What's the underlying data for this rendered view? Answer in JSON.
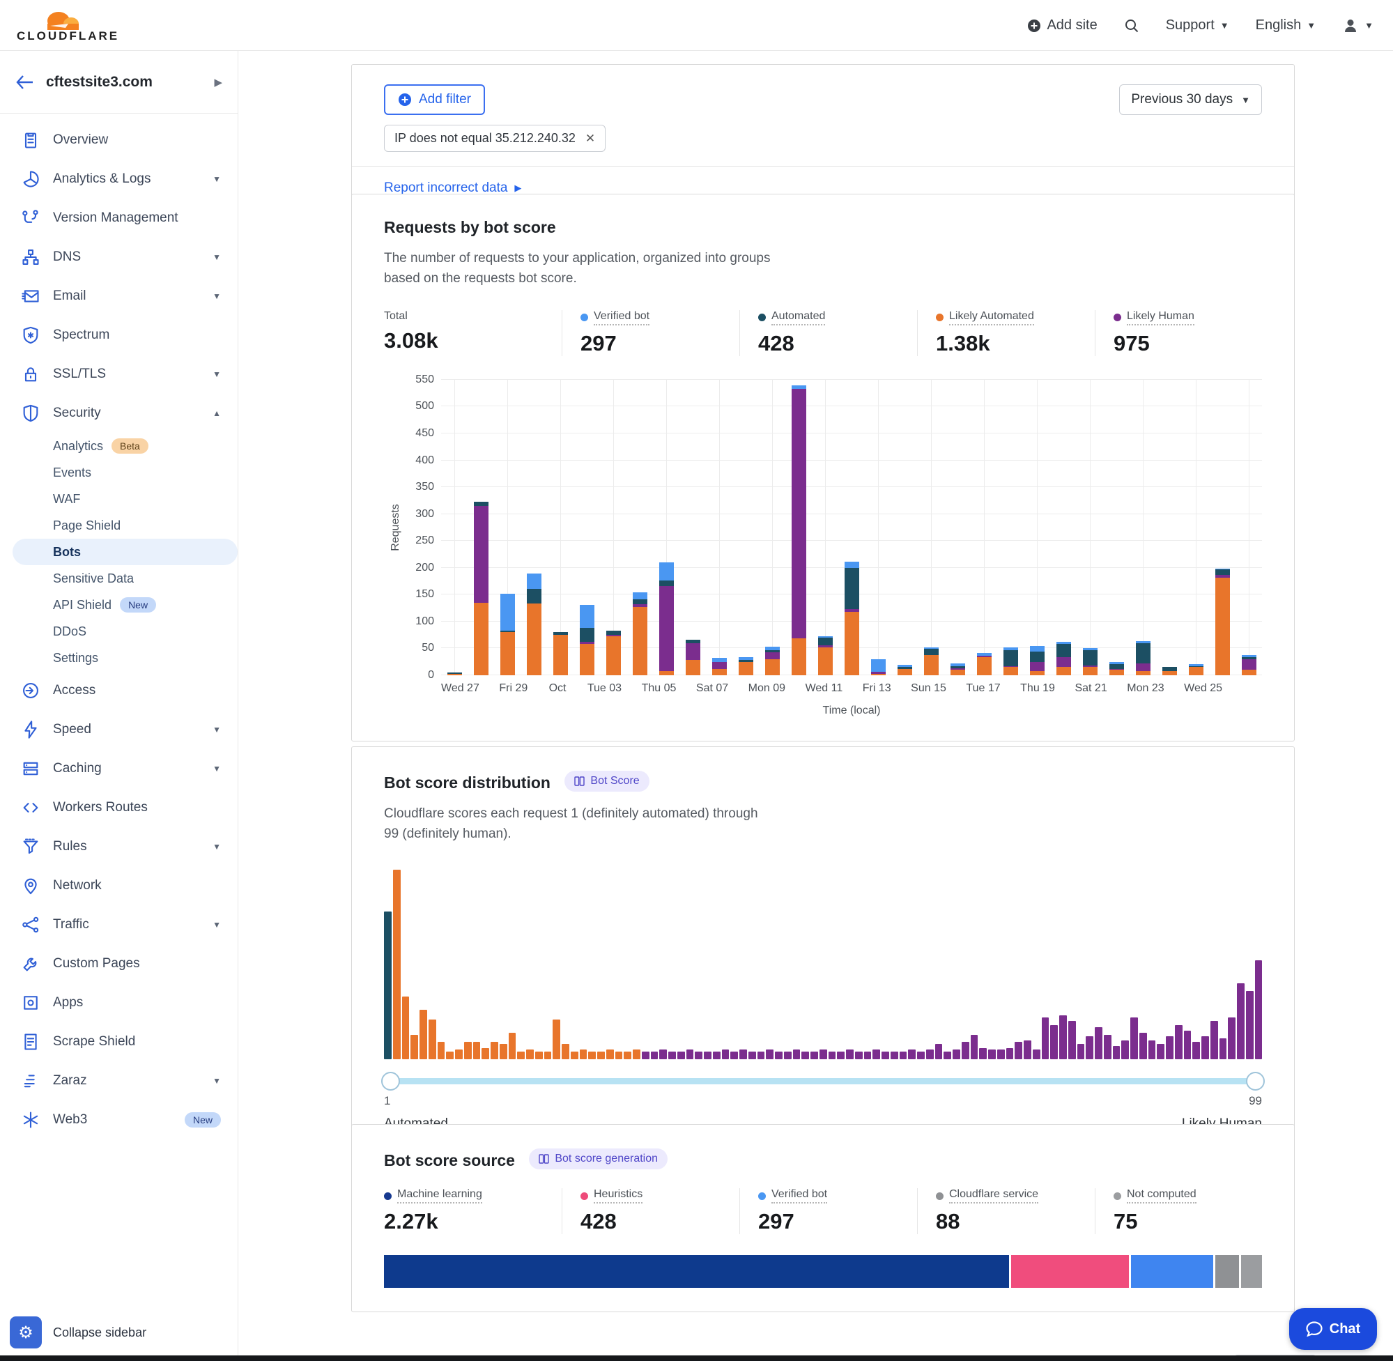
{
  "header": {
    "brand": "CLOUDFLARE",
    "add_site": "Add site",
    "support": "Support",
    "language": "English"
  },
  "sidebar": {
    "site": "cftestsite3.com",
    "collapse": "Collapse sidebar",
    "items": [
      {
        "label": "Overview",
        "icon": "clipboard"
      },
      {
        "label": "Analytics & Logs",
        "icon": "pie",
        "caret": "down"
      },
      {
        "label": "Version Management",
        "icon": "branch"
      },
      {
        "label": "DNS",
        "icon": "sitemap",
        "caret": "down"
      },
      {
        "label": "Email",
        "icon": "envelope",
        "caret": "down"
      },
      {
        "label": "Spectrum",
        "icon": "shield-gear"
      },
      {
        "label": "SSL/TLS",
        "icon": "lock",
        "caret": "down"
      },
      {
        "label": "Security",
        "icon": "shield",
        "caret": "up",
        "children": [
          {
            "label": "Analytics",
            "badge": {
              "text": "Beta",
              "style": "beta"
            }
          },
          {
            "label": "Events"
          },
          {
            "label": "WAF"
          },
          {
            "label": "Page Shield"
          },
          {
            "label": "Bots",
            "active": true
          },
          {
            "label": "Sensitive Data"
          },
          {
            "label": "API Shield",
            "badge": {
              "text": "New",
              "style": "new"
            }
          },
          {
            "label": "DDoS"
          },
          {
            "label": "Settings"
          }
        ]
      },
      {
        "label": "Access",
        "icon": "arrow-circle"
      },
      {
        "label": "Speed",
        "icon": "bolt",
        "caret": "down"
      },
      {
        "label": "Caching",
        "icon": "stack",
        "caret": "down"
      },
      {
        "label": "Workers Routes",
        "icon": "code"
      },
      {
        "label": "Rules",
        "icon": "funnel",
        "caret": "down"
      },
      {
        "label": "Network",
        "icon": "pin"
      },
      {
        "label": "Traffic",
        "icon": "share",
        "caret": "down"
      },
      {
        "label": "Custom Pages",
        "icon": "wrench"
      },
      {
        "label": "Apps",
        "icon": "app"
      },
      {
        "label": "Scrape Shield",
        "icon": "document"
      },
      {
        "label": "Zaraz",
        "icon": "zaraz",
        "caret": "down"
      },
      {
        "label": "Web3",
        "icon": "snowflake",
        "badge": {
          "text": "New",
          "style": "new"
        }
      }
    ]
  },
  "filter": {
    "add_filter": "Add filter",
    "chip": "IP does not equal 35.212.240.32",
    "range": "Previous 30 days",
    "report": "Report incorrect data"
  },
  "requests_section": {
    "title": "Requests by bot score",
    "description": "The number of requests to your application, organized into groups based on the requests bot score.",
    "stats": [
      {
        "label": "Total",
        "value": "3.08k",
        "color": null
      },
      {
        "label": "Verified bot",
        "value": "297",
        "color": "#4a97f2"
      },
      {
        "label": "Automated",
        "value": "428",
        "color": "#1c4f63"
      },
      {
        "label": "Likely Automated",
        "value": "1.38k",
        "color": "#e8752b"
      },
      {
        "label": "Likely Human",
        "value": "975",
        "color": "#7b2d8e"
      }
    ],
    "chart_data": {
      "type": "bar",
      "stacked": true,
      "title": "Requests by bot score",
      "xlabel": "Time (local)",
      "ylabel": "Requests",
      "ylim": [
        0,
        550
      ],
      "y_step": 50,
      "grid": true,
      "tick_labels": [
        "Wed 27",
        "Fri 29",
        "Oct",
        "Tue 03",
        "Thu 05",
        "Sat 07",
        "Mon 09",
        "Wed 11",
        "Fri 13",
        "Sun 15",
        "Tue 17",
        "Thu 19",
        "Sat 21",
        "Mon 23",
        "Wed 25"
      ],
      "series_order": [
        "Likely Automated",
        "Likely Human",
        "Automated",
        "Verified bot"
      ],
      "colors": {
        "Likely Automated": "#e8752b",
        "Likely Human": "#7b2d8e",
        "Automated": "#1c4f63",
        "Verified bot": "#4a97f2"
      },
      "bars": [
        [
          2,
          0,
          3,
          0
        ],
        [
          135,
          180,
          8,
          0
        ],
        [
          80,
          0,
          3,
          68
        ],
        [
          133,
          0,
          28,
          28
        ],
        [
          75,
          0,
          5,
          0
        ],
        [
          58,
          4,
          26,
          43
        ],
        [
          72,
          3,
          8,
          0
        ],
        [
          127,
          5,
          9,
          13
        ],
        [
          8,
          158,
          10,
          34
        ],
        [
          28,
          32,
          6,
          0
        ],
        [
          12,
          12,
          0,
          8
        ],
        [
          25,
          0,
          4,
          4
        ],
        [
          30,
          13,
          4,
          6
        ],
        [
          68,
          465,
          0,
          7
        ],
        [
          52,
          4,
          14,
          2
        ],
        [
          118,
          5,
          77,
          11
        ],
        [
          2,
          4,
          0,
          24
        ],
        [
          11,
          0,
          4,
          4
        ],
        [
          38,
          0,
          11,
          3
        ],
        [
          10,
          3,
          4,
          5
        ],
        [
          34,
          2,
          0,
          5
        ],
        [
          15,
          2,
          30,
          5
        ],
        [
          8,
          16,
          20,
          10
        ],
        [
          16,
          18,
          24,
          4
        ],
        [
          16,
          2,
          28,
          5
        ],
        [
          10,
          2,
          9,
          4
        ],
        [
          8,
          14,
          38,
          3
        ],
        [
          8,
          0,
          8,
          0
        ],
        [
          15,
          1,
          1,
          3
        ],
        [
          182,
          5,
          10,
          2
        ],
        [
          10,
          20,
          4,
          4
        ]
      ]
    }
  },
  "distribution_section": {
    "title": "Bot score distribution",
    "badge": "Bot Score",
    "description": "Cloudflare scores each request 1 (definitely automated) through 99 (definitely human).",
    "slider": {
      "min": "1",
      "min_label": "Automated",
      "max": "99",
      "max_label": "Likely Human"
    },
    "chart_data": {
      "type": "bar",
      "title": "Bot score distribution",
      "x_range": [
        1,
        99
      ],
      "color_rules": {
        "1": "#1c4f63",
        "2-29": "#e8752b",
        "30-99": "#7b2d8e"
      },
      "heights_pct": [
        78,
        100,
        33,
        13,
        26,
        21,
        9,
        4,
        5,
        9,
        9,
        6,
        9,
        8,
        14,
        4,
        5,
        4,
        4,
        21,
        8,
        4,
        5,
        4,
        4,
        5,
        4,
        4,
        5,
        4,
        4,
        5,
        4,
        4,
        5,
        4,
        4,
        4,
        5,
        4,
        5,
        4,
        4,
        5,
        4,
        4,
        5,
        4,
        4,
        5,
        4,
        4,
        5,
        4,
        4,
        5,
        4,
        4,
        4,
        5,
        4,
        5,
        8,
        4,
        5,
        9,
        13,
        6,
        5,
        5,
        6,
        9,
        10,
        5,
        22,
        18,
        23,
        20,
        8,
        12,
        17,
        13,
        7,
        10,
        22,
        14,
        10,
        8,
        12,
        18,
        15,
        9,
        12,
        20,
        11,
        22,
        40,
        36,
        52
      ]
    }
  },
  "source_section": {
    "title": "Bot score source",
    "badge": "Bot score generation",
    "stats": [
      {
        "label": "Machine learning",
        "value": "2.27k",
        "color": "#16398f"
      },
      {
        "label": "Heuristics",
        "value": "428",
        "color": "#ee4b7a"
      },
      {
        "label": "Verified bot",
        "value": "297",
        "color": "#4a97f2"
      },
      {
        "label": "Cloudflare service",
        "value": "88",
        "color": "#8f9194"
      },
      {
        "label": "Not computed",
        "value": "75",
        "color": "#9b9da0"
      }
    ],
    "chart_data": {
      "type": "bar",
      "stacked": true,
      "orientation": "horizontal",
      "title": "Bot score source share",
      "segments": [
        {
          "label": "Machine learning",
          "value": 2270,
          "color": "#0e3a8d"
        },
        {
          "label": "Heuristics",
          "value": 428,
          "color": "#f04d7d"
        },
        {
          "label": "Verified bot",
          "value": 297,
          "color": "#3f85f0"
        },
        {
          "label": "Cloudflare service",
          "value": 88,
          "color": "#8f9194"
        },
        {
          "label": "Not computed",
          "value": 75,
          "color": "#9b9da0"
        }
      ]
    }
  },
  "chat": {
    "label": "Chat"
  }
}
